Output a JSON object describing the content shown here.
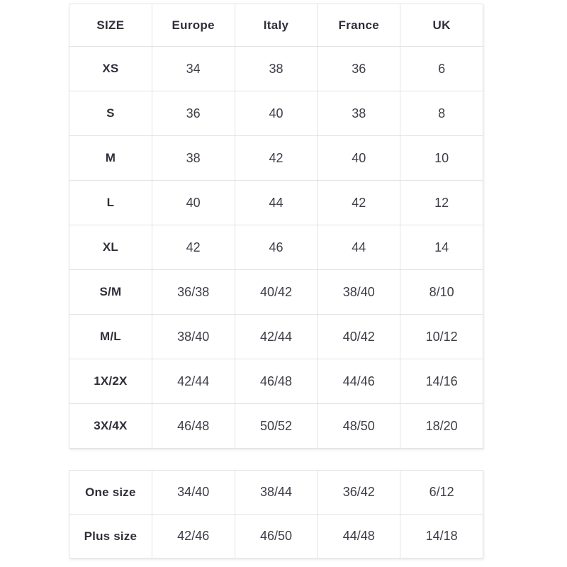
{
  "colors": {
    "background": "#ffffff",
    "border": "#e3e3e3",
    "heading_text": "#2f2f3a",
    "value_text": "#3d3d47"
  },
  "table1": {
    "headers": [
      "SIZE",
      "Europe",
      "Italy",
      "France",
      "UK"
    ],
    "rows": [
      {
        "label": "XS",
        "values": [
          "34",
          "38",
          "36",
          "6"
        ]
      },
      {
        "label": "S",
        "values": [
          "36",
          "40",
          "38",
          "8"
        ]
      },
      {
        "label": "M",
        "values": [
          "38",
          "42",
          "40",
          "10"
        ]
      },
      {
        "label": "L",
        "values": [
          "40",
          "44",
          "42",
          "12"
        ]
      },
      {
        "label": "XL",
        "values": [
          "42",
          "46",
          "44",
          "14"
        ]
      },
      {
        "label": "S/M",
        "values": [
          "36/38",
          "40/42",
          "38/40",
          "8/10"
        ]
      },
      {
        "label": "M/L",
        "values": [
          "38/40",
          "42/44",
          "40/42",
          "10/12"
        ]
      },
      {
        "label": "1X/2X",
        "values": [
          "42/44",
          "46/48",
          "44/46",
          "14/16"
        ]
      },
      {
        "label": "3X/4X",
        "values": [
          "46/48",
          "50/52",
          "48/50",
          "18/20"
        ]
      }
    ]
  },
  "table2": {
    "rows": [
      {
        "label": "One size",
        "values": [
          "34/40",
          "38/44",
          "36/42",
          "6/12"
        ]
      },
      {
        "label": "Plus size",
        "values": [
          "42/46",
          "46/50",
          "44/48",
          "14/18"
        ]
      }
    ]
  }
}
